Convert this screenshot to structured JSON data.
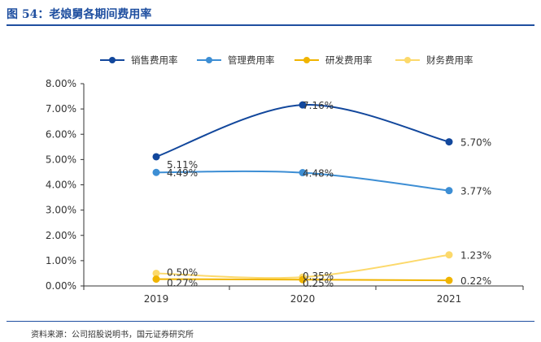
{
  "header": {
    "title": "图 54：老娘舅各期间费用率"
  },
  "footer": {
    "source": "资料来源：公司招股说明书，国元证券研究所"
  },
  "chart_data": {
    "type": "line",
    "categories": [
      "2019",
      "2020",
      "2021"
    ],
    "ylim": [
      0,
      8
    ],
    "yticks": [
      "0.00%",
      "1.00%",
      "2.00%",
      "3.00%",
      "4.00%",
      "5.00%",
      "6.00%",
      "7.00%",
      "8.00%"
    ],
    "legend_position": "top",
    "grid": false,
    "series": [
      {
        "name": "销售费用率",
        "color": "#12479c",
        "values": [
          5.11,
          7.16,
          5.7
        ],
        "labels": [
          "5.11%",
          "7.16%",
          "5.70%"
        ]
      },
      {
        "name": "管理费用率",
        "color": "#3d8ed4",
        "values": [
          4.49,
          4.48,
          3.77
        ],
        "labels": [
          "4.49%",
          "4.48%",
          "3.77%"
        ]
      },
      {
        "name": "研发费用率",
        "color": "#f0b400",
        "values": [
          0.27,
          0.25,
          0.22
        ],
        "labels": [
          "0.27%",
          "0.25%",
          "0.22%"
        ]
      },
      {
        "name": "财务费用率",
        "color": "#fcd96b",
        "values": [
          0.5,
          0.35,
          1.23
        ],
        "labels": [
          "0.50%",
          "0.35%",
          "1.23%"
        ]
      }
    ]
  }
}
